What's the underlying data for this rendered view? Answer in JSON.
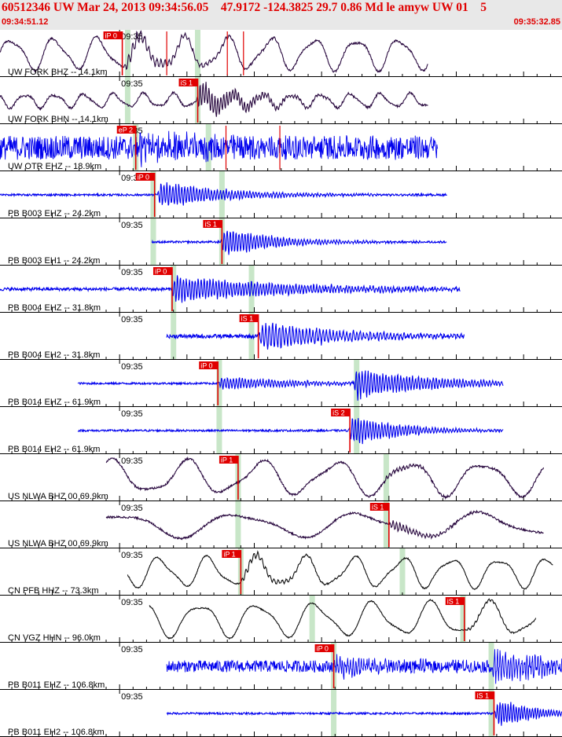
{
  "header": {
    "title": "60512346 UW Mar 24, 2013 09:34:56.05    47.9172 -124.3825 29.7 0.86 Md le amyw UW 01    5",
    "start_time": "09:34:51.12",
    "end_time": "09:35:32.85",
    "color": "#e00000"
  },
  "chart_data": {
    "type": "line",
    "title": "60512346 UW Mar 24, 2013 09:34:56.05    47.9172 -124.3825 29.7 0.86 Md le amyw UW 01    5",
    "x_range": [
      "09:34:51.12",
      "09:35:32.85"
    ],
    "x_range_seconds": [
      51.12,
      92.85
    ],
    "tick_label": "09:35",
    "tick_interval_seconds": 1,
    "grid": false,
    "legend": "none",
    "colors": {
      "pick": "#e00000",
      "theoretical": "#c8e6c8",
      "blue": "#0000ee",
      "dark": "#101010",
      "purple": "#2a0a40"
    },
    "traces": [
      {
        "label": "UW FORK BHZ -- 14.1km",
        "color": "#2a0a40",
        "style": "smooth",
        "start": 51.12,
        "end": 82.9,
        "amp": 0.8,
        "noise": 0.05,
        "period": 3.2,
        "arrival": 60.3,
        "burst": 0.45,
        "burst_period": 0.3,
        "decay": 4,
        "green": [
          60.6,
          65.8
        ],
        "picks": [
          {
            "label": "iP 0",
            "time": 60.2
          }
        ],
        "red_lines": [
          63.5,
          68.0,
          69.2
        ]
      },
      {
        "label": "UW FORK BHN -- 14.1km",
        "color": "#2a0a40",
        "style": "smooth",
        "start": 51.12,
        "end": 82.9,
        "amp": 0.35,
        "noise": 0.05,
        "period": 2.2,
        "arrival": 65.7,
        "burst": 0.9,
        "burst_period": 0.22,
        "decay": 3,
        "green": [
          60.6,
          65.8
        ],
        "picks": [
          {
            "label": "iS 1",
            "time": 65.8
          }
        ],
        "red_lines": []
      },
      {
        "label": "UW OTR EHZ -- 18.9km",
        "color": "#0000ee",
        "style": "noisy",
        "start": 51.12,
        "end": 83.6,
        "amp": 0.02,
        "noise": 0.6,
        "period": 1.0,
        "arrival": 61.2,
        "burst": 0.55,
        "burst_period": 0.15,
        "decay": 5,
        "green": [
          61.2,
          66.6
        ],
        "picks": [
          {
            "label": "eP 2",
            "time": 61.2
          }
        ],
        "red_lines": [
          67.9,
          71.9
        ]
      },
      {
        "label": "PB B003 EHZ -- 24.2km",
        "color": "#0000ee",
        "style": "quiet",
        "start": 51.12,
        "end": 84.3,
        "amp": 0.0,
        "noise": 0.05,
        "period": 1.0,
        "arrival": 62.8,
        "burst": 0.8,
        "burst_period": 0.22,
        "decay": 5,
        "green": [
          62.5,
          67.6
        ],
        "picks": [
          {
            "label": "iP 0",
            "time": 62.6
          }
        ],
        "red_lines": []
      },
      {
        "label": "PB B003 EH1 -- 24.2km",
        "color": "#0000ee",
        "style": "quiet",
        "start": 62.4,
        "end": 84.3,
        "amp": 0.0,
        "noise": 0.05,
        "period": 1.0,
        "arrival": 67.5,
        "burst": 0.85,
        "burst_period": 0.22,
        "decay": 4,
        "green": [
          62.5,
          67.6
        ],
        "picks": [
          {
            "label": "iS 1",
            "time": 67.6
          }
        ],
        "red_lines": []
      },
      {
        "label": "PB B004 EHZ -- 31.8km",
        "color": "#0000ee",
        "style": "quiet",
        "start": 51.12,
        "end": 85.3,
        "amp": 0.0,
        "noise": 0.08,
        "period": 1.0,
        "arrival": 63.8,
        "burst": 0.75,
        "burst_period": 0.22,
        "decay": 9,
        "green": [
          64.0,
          69.8
        ],
        "picks": [
          {
            "label": "iP 0",
            "time": 63.9
          }
        ],
        "red_lines": []
      },
      {
        "label": "PB B004 EH2 -- 31.8km",
        "color": "#0000ee",
        "style": "quiet",
        "start": 63.5,
        "end": 85.6,
        "amp": 0.0,
        "noise": 0.1,
        "period": 1.0,
        "arrival": 70.3,
        "burst": 0.85,
        "burst_period": 0.25,
        "decay": 6,
        "green": [
          64.0,
          69.8
        ],
        "picks": [
          {
            "label": "iS 1",
            "time": 70.3
          }
        ],
        "red_lines": []
      },
      {
        "label": "PB B014 EHZ -- 61.9km",
        "color": "#0000ee",
        "style": "quiet",
        "start": 56.9,
        "end": 88.5,
        "amp": 0.0,
        "noise": 0.05,
        "period": 1.0,
        "arrival": 67.3,
        "burst": 0.4,
        "burst_period": 0.22,
        "decay": 6,
        "burst2": [
          77.3,
          0.95
        ],
        "green": [
          67.4,
          77.6
        ],
        "picks": [
          {
            "label": "iP 0",
            "time": 67.3
          }
        ],
        "red_lines": []
      },
      {
        "label": "PB B014 EH2 -- 61.9km",
        "color": "#0000ee",
        "style": "quiet",
        "start": 56.9,
        "end": 88.5,
        "amp": 0.0,
        "noise": 0.05,
        "period": 1.0,
        "arrival": 77.0,
        "burst": 0.85,
        "burst_period": 0.22,
        "decay": 4,
        "green": [
          67.4,
          77.6
        ],
        "picks": [
          {
            "label": "iS 2",
            "time": 77.1
          }
        ],
        "red_lines": []
      },
      {
        "label": "US NLWA BHZ 00 69.9km",
        "color": "#2a0a40",
        "style": "smooth",
        "start": 59.0,
        "end": 91.5,
        "amp": 0.85,
        "noise": 0.05,
        "period": 5.5,
        "arrival": 79.5,
        "burst": 0.15,
        "burst_period": 0.25,
        "decay": 3,
        "green": [
          68.8,
          79.8
        ],
        "picks": [
          {
            "label": "iP 1",
            "time": 68.8
          }
        ],
        "red_lines": []
      },
      {
        "label": "US NLWA BHZ 00 69.9km",
        "color": "#2a0a40",
        "style": "smooth",
        "start": 59.0,
        "end": 91.5,
        "amp": 0.6,
        "noise": 0.05,
        "period": 9.0,
        "arrival": 80.0,
        "burst": 0.3,
        "burst_period": 0.25,
        "decay": 3,
        "green": [
          68.8,
          79.8
        ],
        "picks": [
          {
            "label": "iS 1",
            "time": 80.0
          }
        ],
        "red_lines": []
      },
      {
        "label": "CN PFB HHZ -- 73.3km",
        "color": "#101010",
        "style": "smooth",
        "start": 60.6,
        "end": 92.2,
        "amp": 0.75,
        "noise": 0.03,
        "period": 3.6,
        "arrival": 69.0,
        "burst": 0.3,
        "burst_period": 0.3,
        "decay": 3,
        "green": [
          69.0,
          81.0
        ],
        "picks": [
          {
            "label": "iP 1",
            "time": 69.0
          }
        ],
        "red_lines": []
      },
      {
        "label": "CN VGZ HHN -- 96.0km",
        "color": "#101010",
        "style": "smooth",
        "start": 62.2,
        "end": 90.9,
        "amp": 0.85,
        "noise": 0.03,
        "period": 4.3,
        "arrival": 85.6,
        "burst": 0.1,
        "burst_period": 0.25,
        "decay": 3,
        "green": [
          74.3,
          85.5
        ],
        "picks": [
          {
            "label": "iS 1",
            "time": 85.6
          }
        ],
        "red_lines": []
      },
      {
        "label": "PB B011 EHZ -- 106.8km",
        "color": "#0000ee",
        "style": "noisy",
        "start": 63.5,
        "end": 92.85,
        "amp": 0.0,
        "noise": 0.3,
        "period": 1.0,
        "arrival": 75.9,
        "burst": 0.55,
        "burst_period": 0.2,
        "decay": 4,
        "burst2": [
          87.6,
          0.95
        ],
        "green": [
          75.9,
          87.6
        ],
        "picks": [
          {
            "label": "iP 0",
            "time": 75.9
          }
        ],
        "red_lines": []
      },
      {
        "label": "PB B011 EH2 -- 106.8km",
        "color": "#0000ee",
        "style": "quiet",
        "start": 63.5,
        "end": 92.85,
        "amp": 0.0,
        "noise": 0.05,
        "period": 1.0,
        "arrival": 87.8,
        "burst": 0.85,
        "burst_period": 0.2,
        "decay": 3,
        "green": [
          75.9,
          87.6
        ],
        "picks": [
          {
            "label": "iS 1",
            "time": 87.8
          }
        ],
        "red_lines": []
      }
    ]
  }
}
